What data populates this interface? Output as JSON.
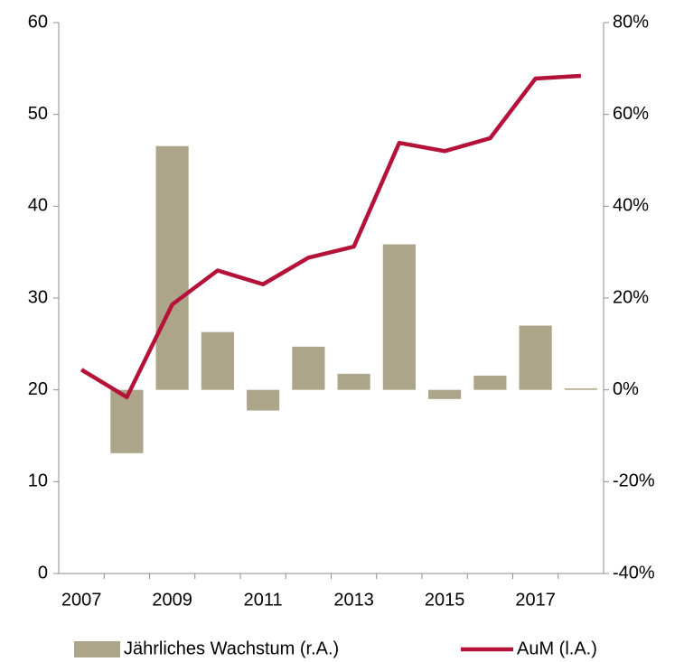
{
  "chart_data": {
    "type": "bar",
    "categories": [
      "2007",
      null,
      "2009",
      null,
      "2011",
      null,
      "2013",
      null,
      "2015",
      null,
      "2017",
      null
    ],
    "series": [
      {
        "name": "Jährliches Wachstum (r.A.)",
        "type": "bar",
        "axis": "y2",
        "color": "#ada58a",
        "values": [
          null,
          -13.8,
          53.1,
          12.6,
          -4.5,
          9.4,
          3.5,
          31.7,
          -2.0,
          3.1,
          14.0,
          0.3
        ]
      },
      {
        "name": "AuM (l.A.)",
        "type": "line",
        "color": "#b5123a",
        "values": [
          22.2,
          19.2,
          29.3,
          33.0,
          31.5,
          34.4,
          35.6,
          46.9,
          46.0,
          47.4,
          53.9,
          54.2
        ]
      }
    ],
    "ylim": [
      0,
      60
    ],
    "yticks": [
      0,
      10,
      20,
      30,
      40,
      50,
      60
    ],
    "y2lim": [
      -40,
      80
    ],
    "y2ticks": [
      {
        "value": -40,
        "label": "-40%"
      },
      {
        "value": -20,
        "label": "-20%"
      },
      {
        "value": 0,
        "label": "0%"
      },
      {
        "value": 20,
        "label": "20%"
      },
      {
        "value": 40,
        "label": "40%"
      },
      {
        "value": 60,
        "label": "60%"
      },
      {
        "value": 80,
        "label": "80%"
      }
    ],
    "grid": false
  }
}
